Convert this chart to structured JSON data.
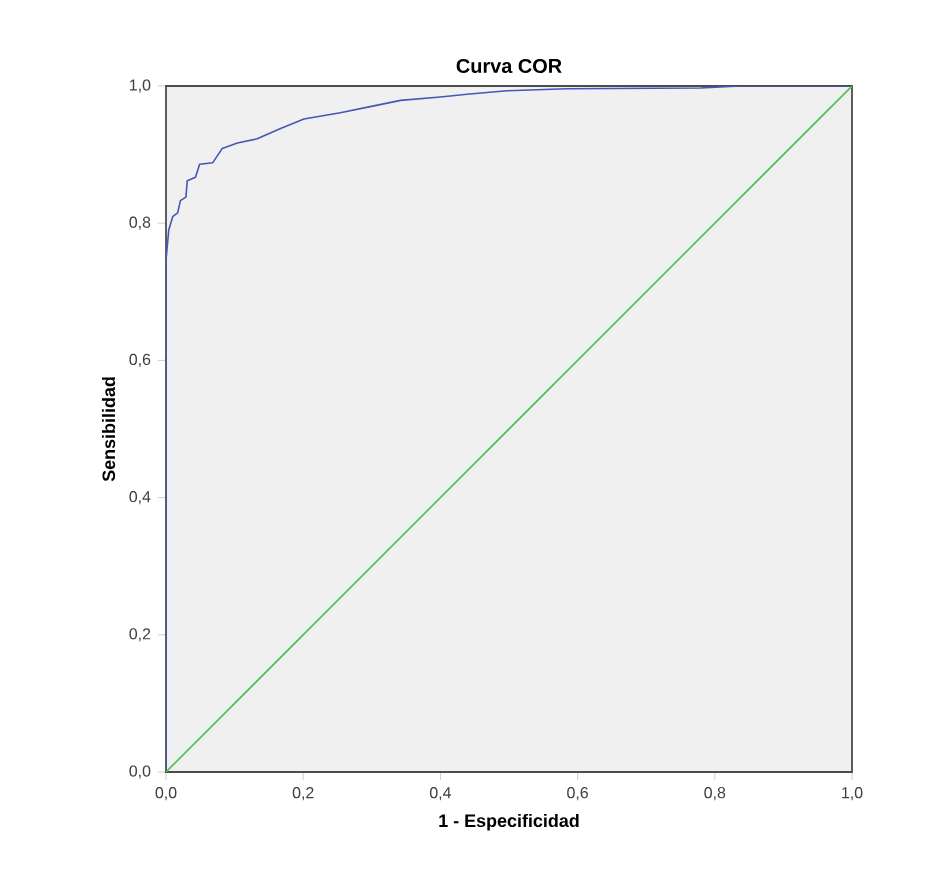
{
  "chart_data": {
    "type": "line",
    "title": "Curva COR",
    "xlabel": "1 - Especificidad",
    "ylabel": "Sensibilidad",
    "xlim": [
      0,
      1
    ],
    "ylim": [
      0,
      1
    ],
    "xticks": [
      {
        "value": 0,
        "label": "0,0"
      },
      {
        "value": 0.2,
        "label": "0,2"
      },
      {
        "value": 0.4,
        "label": "0,4"
      },
      {
        "value": 0.6,
        "label": "0,6"
      },
      {
        "value": 0.8,
        "label": "0,8"
      },
      {
        "value": 1,
        "label": "1,0"
      }
    ],
    "yticks": [
      {
        "value": 0,
        "label": "0,0"
      },
      {
        "value": 0.2,
        "label": "0,2"
      },
      {
        "value": 0.4,
        "label": "0,4"
      },
      {
        "value": 0.6,
        "label": "0,6"
      },
      {
        "value": 0.8,
        "label": "0,8"
      },
      {
        "value": 1,
        "label": "1,0"
      }
    ],
    "grid": false,
    "marker": "none",
    "line_style": "solid",
    "series": [
      {
        "color": "#4457b8",
        "x": [
          0,
          0,
          0.004,
          0.01,
          0.017,
          0.021,
          0.029,
          0.031,
          0.043,
          0.049,
          0.068,
          0.082,
          0.104,
          0.133,
          0.167,
          0.201,
          0.254,
          0.303,
          0.342,
          0.4,
          0.439,
          0.497,
          0.584,
          0.779,
          0.837,
          1
        ],
        "values": [
          0,
          0.746,
          0.79,
          0.81,
          0.815,
          0.833,
          0.838,
          0.862,
          0.867,
          0.886,
          0.888,
          0.909,
          0.917,
          0.923,
          0.938,
          0.952,
          0.961,
          0.971,
          0.979,
          0.984,
          0.988,
          0.993,
          0.996,
          0.997,
          1,
          1
        ]
      },
      {
        "color": "#4cc04c",
        "x": [
          0,
          1
        ],
        "values": [
          0,
          1
        ]
      }
    ]
  }
}
